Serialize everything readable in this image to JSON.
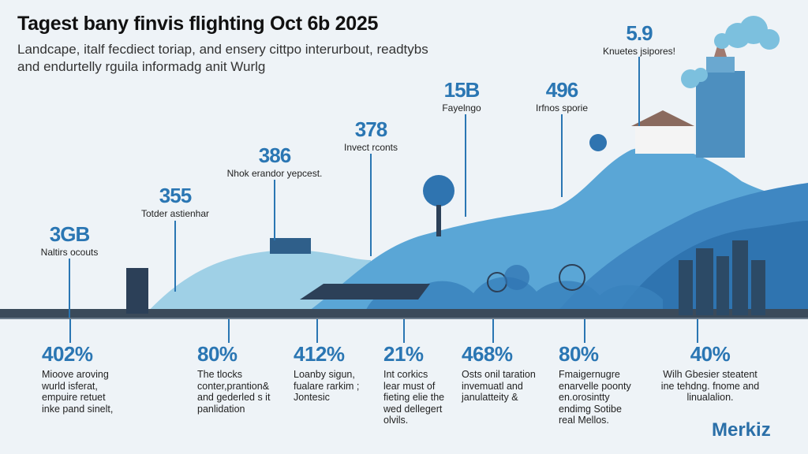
{
  "header": {
    "title": "Tagest bany finvis flighting Oct 6b 2025",
    "subtitle": "Landcape, italf fecdiect toriap, and ensery cittpo interurbout, readtybs and endurtelly rguila informadg anit Wurlg"
  },
  "callouts": [
    {
      "value": "3GB",
      "label": "Naltirs ocouts"
    },
    {
      "value": "355",
      "label": "Totder astienhar"
    },
    {
      "value": "386",
      "label": "Nhok erandor yepcest."
    },
    {
      "value": "378",
      "label": "Invect rconts"
    },
    {
      "value": "15B",
      "label": "Fayelngo"
    },
    {
      "value": "496",
      "label": "Irfnos sporie"
    },
    {
      "value": "5.9",
      "label": "Knuetes jsipores!"
    }
  ],
  "stats": [
    {
      "value": "402%",
      "text": [
        "Mioove aroving",
        "wurld isferat,",
        "empuire retuet",
        "inke pand sinelt,"
      ]
    },
    {
      "value": "80%",
      "text": [
        "The tlocks",
        "conter,prantion&",
        "and gederled s it",
        "panlidation"
      ]
    },
    {
      "value": "412%",
      "text": [
        "Loanby sigun,",
        "fualare rarkim ;",
        "Jontesic"
      ]
    },
    {
      "value": "21%",
      "text": [
        "Int corkics",
        "lear must of",
        "fieting elie the",
        "wed dellegert",
        "olvils."
      ]
    },
    {
      "value": "468%",
      "text": [
        "Osts onil taration",
        "invemuatl and",
        "janulatteity &"
      ]
    },
    {
      "value": "80%",
      "text": [
        "Fmaigernugre",
        "enarvelle poonty",
        "en.orosintty",
        "endimg Sotibe",
        "real Mellos."
      ]
    },
    {
      "value": "40%",
      "text": [
        "Wilh Gbesier steatent",
        "ine tehdng. fnome and",
        "linualalion."
      ]
    }
  ],
  "brand": {
    "logo": "Merkiz"
  },
  "colors": {
    "accent": "#2a76b3",
    "hill_light": "#9fd0e6",
    "hill_mid": "#4a98cf",
    "hill_dark": "#2f74b0",
    "ground": "#3a4a5a"
  }
}
